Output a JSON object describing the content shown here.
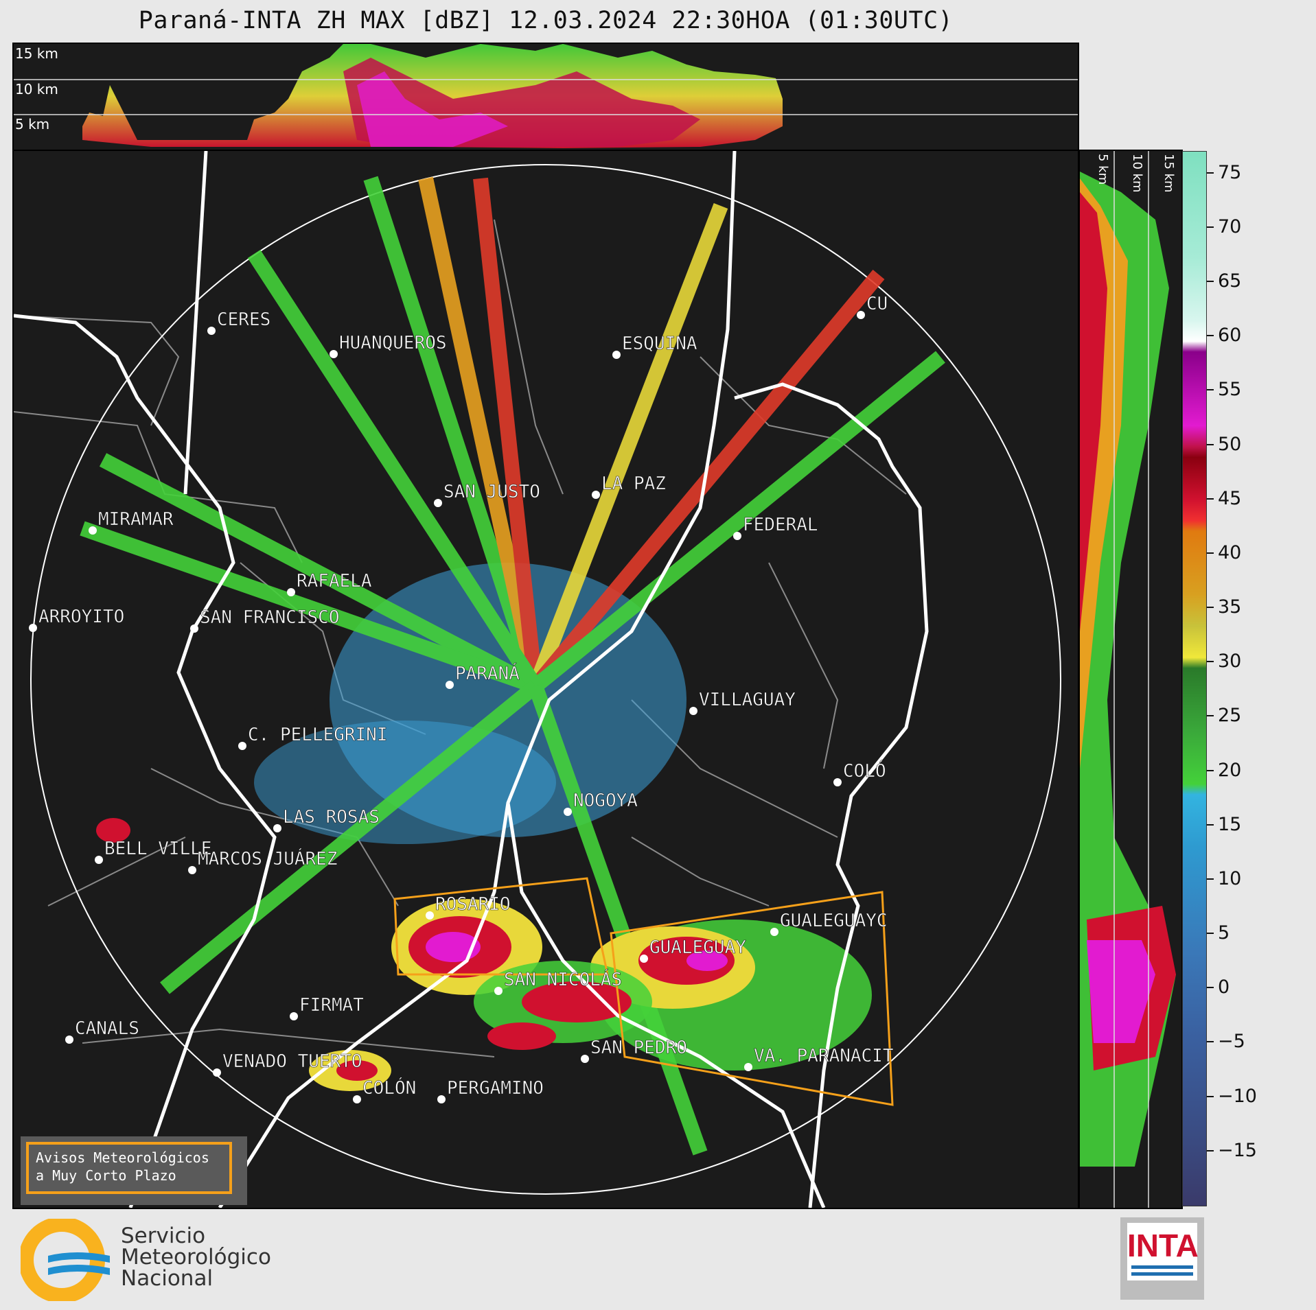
{
  "title": "Paraná-INTA ZH MAX [dBZ] 12.03.2024 22:30HOA (01:30UTC)",
  "top_panel": {
    "km_labels": [
      "15 km",
      "10 km",
      "5 km"
    ]
  },
  "side_panel": {
    "km_labels": [
      "5 km",
      "10 km",
      "15 km"
    ]
  },
  "colorbar": {
    "ticks": [
      "75",
      "70",
      "65",
      "60",
      "55",
      "50",
      "45",
      "40",
      "35",
      "30",
      "25",
      "20",
      "15",
      "10",
      "5",
      "0",
      "−5",
      "−10",
      "−15"
    ],
    "tick_values": [
      75,
      70,
      65,
      60,
      55,
      50,
      45,
      40,
      35,
      30,
      25,
      20,
      15,
      10,
      5,
      0,
      -5,
      -10,
      -15
    ],
    "range": [
      -20,
      77
    ]
  },
  "cities": [
    {
      "name": "CERES"
    },
    {
      "name": "HUANQUEROS"
    },
    {
      "name": "ESQUINA"
    },
    {
      "name": "CU"
    },
    {
      "name": "SAN JUSTO"
    },
    {
      "name": "LA PAZ"
    },
    {
      "name": "MIRAMAR"
    },
    {
      "name": "FEDERAL"
    },
    {
      "name": "RAFAELA"
    },
    {
      "name": "ARROYITO"
    },
    {
      "name": "SAN FRANCISCO"
    },
    {
      "name": "PARANÁ"
    },
    {
      "name": "VILLAGUAY"
    },
    {
      "name": "C. PELLEGRINI"
    },
    {
      "name": "COLÓ"
    },
    {
      "name": "NOGOYA"
    },
    {
      "name": "LAS ROSAS"
    },
    {
      "name": "BELL VILLE"
    },
    {
      "name": "MARCOS JUÁREZ"
    },
    {
      "name": "ROSARIO"
    },
    {
      "name": "GUALEGUAYC"
    },
    {
      "name": "GUALEGUAY"
    },
    {
      "name": "SAN NICOLÁS"
    },
    {
      "name": "FIRMAT"
    },
    {
      "name": "CANALS"
    },
    {
      "name": "SAN PEDRO"
    },
    {
      "name": "VENADO TUERTO"
    },
    {
      "name": "VA. PARANACIT"
    },
    {
      "name": "COLÓN"
    },
    {
      "name": "PERGAMINO"
    }
  ],
  "legend": {
    "line1": "Avisos Meteorológicos",
    "line2": "a Muy Corto Plazo"
  },
  "footer": {
    "smn_line1": "Servicio",
    "smn_line2": "Meteorológico",
    "smn_line3": "Nacional",
    "inta_label": "INTA"
  },
  "colors": {
    "background": "#1b1b1b",
    "warning_polygon": "#f5a01a",
    "range_ring": "#ffffff",
    "province_border": "#ffffff",
    "department_border": "#8a8a8a"
  }
}
